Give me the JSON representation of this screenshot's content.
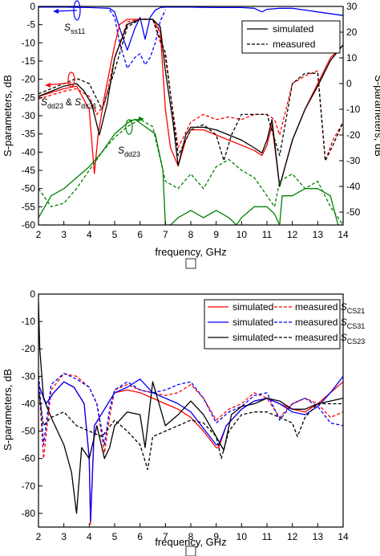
{
  "chart_data": [
    {
      "type": "line",
      "panel_label": "",
      "xlabel": "frequency, GHz",
      "ylabel": "S-parameters, dB",
      "y2label": "S-parameters, dB",
      "xlim": [
        2,
        14
      ],
      "ylim": [
        -60,
        0
      ],
      "y2lim": [
        -55,
        30
      ],
      "xticks": [
        "2",
        "3",
        "4",
        "5",
        "6",
        "7",
        "8",
        "9",
        "10",
        "11",
        "12",
        "13",
        "14"
      ],
      "yticks": [
        "0",
        "-5",
        "-10",
        "-15",
        "-20",
        "-25",
        "-30",
        "-35",
        "-40",
        "-45",
        "-50",
        "-55",
        "-60"
      ],
      "y2ticks": [
        "30",
        "20",
        "10",
        "0",
        "-10",
        "-20",
        "-30",
        "-40",
        "-50"
      ],
      "grid": false,
      "legend": {
        "position": "top-right",
        "entries": [
          "simulated",
          "measured"
        ]
      },
      "annotations": [
        {
          "name": "S",
          "sub": "ss11"
        },
        {
          "name": "S",
          "sub": "dd23"
        },
        {
          "name": "&"
        },
        {
          "name": "S",
          "sub": "ds31"
        },
        {
          "name": "S",
          "sub": "dd23"
        }
      ],
      "series": [
        {
          "color": "#0000ff",
          "style": "solid",
          "axis": "left",
          "x": [
            2,
            3,
            4,
            4.8,
            5,
            5.2,
            5.5,
            5.8,
            6,
            6.2,
            6.4,
            6.6,
            6.8,
            7,
            8,
            9,
            10,
            10.5,
            10.8,
            11,
            11.5,
            12,
            13,
            14
          ],
          "y": [
            -0.2,
            -0.2,
            -0.3,
            -0.5,
            -1.5,
            -6,
            -12,
            -6,
            -3,
            -9,
            -3,
            -1,
            -0.3,
            -0.2,
            -0.2,
            -0.3,
            -0.3,
            -0.5,
            -1.5,
            -0.8,
            -0.5,
            -0.5,
            -1.5,
            -2.5
          ]
        },
        {
          "color": "#0000ff",
          "style": "dashed",
          "axis": "left",
          "x": [
            4.8,
            5,
            5.2,
            5.5,
            5.8,
            6,
            6.2,
            6.4,
            6.6,
            6.8,
            7
          ],
          "y": [
            -1,
            -3,
            -10,
            -17,
            -14,
            -13,
            -16,
            -14,
            -10,
            -4,
            -1
          ]
        },
        {
          "color": "#ff0000",
          "style": "solid",
          "axis": "right",
          "x": [
            2,
            3,
            3.5,
            4,
            4.2,
            4.35,
            4.6,
            5,
            5.2,
            5.5,
            6,
            6.5,
            6.8,
            7,
            7.2,
            7.5,
            7.8,
            8,
            8.5,
            9,
            9.5,
            10,
            10.5,
            10.8,
            11,
            11.2,
            11.5,
            12,
            12.5,
            13,
            13.5,
            14
          ],
          "y": [
            -5,
            -2,
            -1,
            -10,
            -35,
            -20,
            -5,
            15,
            23,
            25,
            25,
            25,
            20,
            -10,
            -25,
            -32,
            -22,
            -18,
            -18,
            -20,
            -22,
            -24,
            -26,
            -28,
            -24,
            -16,
            -40,
            -22,
            -10,
            0,
            10,
            15
          ]
        },
        {
          "color": "#ff0000",
          "style": "dashed",
          "axis": "right",
          "x": [
            2,
            3,
            3.5,
            4,
            4.3,
            4.6,
            5,
            5.5,
            6,
            6.5,
            7,
            7.5,
            8,
            8.5,
            9,
            9.5,
            10,
            10.5,
            11,
            11.3,
            11.5,
            12,
            12.5,
            13,
            13.3,
            13.6,
            14
          ],
          "y": [
            -6,
            -3,
            -2,
            -5,
            -12,
            -8,
            10,
            24,
            25,
            25,
            10,
            -25,
            -15,
            -12,
            -14,
            -13,
            -14,
            -12,
            -12,
            -14,
            -20,
            0,
            3,
            5,
            -30,
            -22,
            -15
          ]
        },
        {
          "color": "#000000",
          "style": "solid",
          "axis": "right",
          "x": [
            2,
            3,
            3.5,
            3.8,
            4.1,
            4.4,
            4.7,
            5,
            5.5,
            6,
            6.5,
            6.8,
            7,
            7.3,
            7.5,
            7.8,
            8,
            8.5,
            9,
            9.5,
            10,
            10.5,
            10.8,
            11,
            11.2,
            11.5,
            12,
            12.5,
            13,
            13.5,
            14
          ],
          "y": [
            -5,
            -1,
            0,
            -3,
            -8,
            -20,
            -8,
            10,
            23,
            25,
            25,
            22,
            5,
            -15,
            -32,
            -20,
            -17,
            -17,
            -18,
            -20,
            -22,
            -25,
            -27,
            -22,
            -14,
            -40,
            -22,
            -10,
            -1,
            9,
            15
          ]
        },
        {
          "color": "#000000",
          "style": "dashed",
          "axis": "right",
          "x": [
            2,
            3,
            3.5,
            4,
            4.5,
            5,
            5.5,
            6,
            6.5,
            7,
            7.5,
            8,
            8.5,
            9,
            9.3,
            9.6,
            10,
            10.5,
            11,
            11.5,
            12,
            12.5,
            13,
            13.3,
            13.6,
            14
          ],
          "y": [
            -4,
            0,
            2,
            0,
            -10,
            5,
            22,
            25,
            25,
            12,
            -28,
            -18,
            -16,
            -20,
            -30,
            -20,
            -12,
            -12,
            -12,
            -28,
            0,
            4,
            4,
            -30,
            -24,
            -15
          ]
        },
        {
          "color": "#008000",
          "style": "solid",
          "axis": "left",
          "x": [
            2,
            2.5,
            3,
            3.5,
            4,
            4.5,
            5,
            5.5,
            5.8,
            6.2,
            6.6,
            6.9,
            7,
            7.2,
            7.5,
            8,
            8.5,
            9,
            9.5,
            9.8,
            10,
            10.5,
            11,
            11.3,
            11.5,
            11.6,
            12,
            12.5,
            13,
            13.5,
            13.8,
            14
          ],
          "y": [
            -58,
            -52,
            -50,
            -47,
            -44,
            -40,
            -35,
            -32,
            -31,
            -33,
            -35,
            -45,
            -60,
            -60,
            -58,
            -56,
            -58,
            -56,
            -58,
            -60,
            -58,
            -55,
            -55,
            -57,
            -60,
            -52,
            -52,
            -50,
            -50,
            -52,
            -60,
            -60
          ]
        },
        {
          "color": "#008000",
          "style": "dashed",
          "axis": "left",
          "x": [
            2,
            2.5,
            3,
            3.5,
            4,
            4.5,
            5,
            5.5,
            6,
            6.5,
            7,
            7.5,
            8,
            8.5,
            9,
            9.5,
            10,
            10.5,
            11,
            11.3,
            11.5,
            12,
            12.5,
            13,
            13.5,
            14
          ],
          "y": [
            -50,
            -55,
            -54,
            -50,
            -45,
            -40,
            -36,
            -33,
            -31,
            -33,
            -48,
            -50,
            -46,
            -50,
            -44,
            -42,
            -45,
            -47,
            -52,
            -55,
            -48,
            -46,
            -50,
            -48,
            -55,
            -60
          ]
        }
      ]
    },
    {
      "type": "line",
      "panel_label": "",
      "xlabel": "frequency, GHz",
      "ylabel": "S-parameters, dB",
      "xlim": [
        2,
        14
      ],
      "ylim": [
        -85,
        0
      ],
      "xticks": [
        "2",
        "3",
        "4",
        "5",
        "6",
        "7",
        "8",
        "9",
        "10",
        "11",
        "12",
        "13",
        "14"
      ],
      "yticks": [
        "0",
        "-10",
        "-20",
        "-30",
        "-40",
        "-50",
        "-60",
        "-70",
        "-80"
      ],
      "grid": false,
      "legend": {
        "position": "top-right",
        "rows": [
          {
            "simulated": "simulated",
            "measured": "measured ",
            "sub": "CS21"
          },
          {
            "simulated": "simulated",
            "measured": "measured ",
            "sub": "CS31"
          },
          {
            "simulated": "simulated",
            "measured": "measured ",
            "sub": "CS23"
          }
        ]
      },
      "series": [
        {
          "color": "#ff0000",
          "style": "solid",
          "x": [
            2,
            2.3,
            2.6,
            3,
            3.4,
            3.8,
            4,
            4.05,
            4.2,
            4.6,
            5,
            5.5,
            6,
            6.5,
            7,
            7.5,
            8,
            8.5,
            9,
            9.1,
            9.4,
            10,
            10.5,
            11,
            11.5,
            12,
            12.5,
            13,
            13.5,
            14
          ],
          "y": [
            -33,
            -40,
            -36,
            -32,
            -34,
            -40,
            -60,
            -84,
            -48,
            -42,
            -36,
            -35,
            -36,
            -38,
            -40,
            -42,
            -45,
            -50,
            -56,
            -56,
            -48,
            -42,
            -39,
            -38,
            -40,
            -42,
            -43,
            -40,
            -36,
            -32
          ]
        },
        {
          "color": "#ff0000",
          "style": "dashed",
          "x": [
            2,
            2.2,
            2.5,
            3,
            3.5,
            4,
            4.3,
            4.6,
            4.8,
            5,
            5.5,
            6,
            6.5,
            7,
            7.5,
            8,
            8.5,
            9,
            9.5,
            10,
            10.5,
            11,
            11.5,
            12,
            12.5,
            13,
            13.5,
            14
          ],
          "y": [
            -30,
            -60,
            -35,
            -29,
            -30,
            -34,
            -40,
            -58,
            -45,
            -35,
            -33,
            -35,
            -36,
            -37,
            -36,
            -33,
            -38,
            -46,
            -42,
            -40,
            -36,
            -38,
            -45,
            -40,
            -38,
            -40,
            -45,
            -43
          ]
        },
        {
          "color": "#0000ff",
          "style": "solid",
          "x": [
            2,
            2.3,
            2.6,
            3,
            3.4,
            3.8,
            4,
            4.05,
            4.2,
            4.6,
            5,
            5.5,
            6,
            6.5,
            7,
            7.5,
            8,
            8.5,
            9,
            9.1,
            9.4,
            10,
            10.5,
            11,
            11.5,
            12,
            12.5,
            13,
            13.5,
            14
          ],
          "y": [
            -33,
            -40,
            -36,
            -32,
            -34,
            -40,
            -60,
            -83,
            -48,
            -42,
            -36,
            -34,
            -31,
            -36,
            -38,
            -40,
            -43,
            -49,
            -55,
            -55,
            -48,
            -42,
            -39,
            -38,
            -40,
            -43,
            -44,
            -41,
            -36,
            -30
          ]
        },
        {
          "color": "#0000ff",
          "style": "dashed",
          "x": [
            2,
            2.2,
            2.5,
            3,
            3.5,
            4,
            4.3,
            4.6,
            4.8,
            5,
            5.5,
            6,
            6.5,
            7,
            7.5,
            8,
            8.5,
            9,
            9.5,
            10,
            10.5,
            11,
            11.5,
            12,
            12.5,
            13,
            13.5,
            14
          ],
          "y": [
            -28,
            -55,
            -33,
            -29,
            -31,
            -34,
            -40,
            -55,
            -42,
            -35,
            -32,
            -35,
            -36,
            -35,
            -33,
            -32,
            -38,
            -47,
            -43,
            -41,
            -37,
            -36,
            -46,
            -40,
            -38,
            -41,
            -47,
            -48
          ]
        },
        {
          "color": "#000000",
          "style": "solid",
          "x": [
            2,
            2.05,
            2.2,
            2.5,
            3,
            3.3,
            3.5,
            3.7,
            4,
            4.3,
            4.6,
            4.8,
            5,
            5.5,
            6,
            6.2,
            6.5,
            7,
            7.5,
            8,
            8.5,
            9,
            9.3,
            9.6,
            10,
            10.5,
            11,
            11.5,
            12,
            12.5,
            13,
            13.5,
            14
          ],
          "y": [
            -3,
            -20,
            -38,
            -45,
            -55,
            -65,
            -80,
            -56,
            -60,
            -48,
            -60,
            -56,
            -48,
            -43,
            -44,
            -56,
            -32,
            -48,
            -44,
            -39,
            -44,
            -52,
            -57,
            -44,
            -41,
            -40,
            -38,
            -39,
            -42,
            -42,
            -40,
            -39,
            -38
          ]
        },
        {
          "color": "#000000",
          "style": "dashed",
          "x": [
            2,
            2.2,
            2.5,
            3,
            3.5,
            4,
            4.5,
            5,
            5.5,
            5.8,
            6,
            6.3,
            6.5,
            7,
            7.5,
            8,
            8.5,
            9,
            9.2,
            9.5,
            10,
            10.5,
            11,
            11.5,
            12,
            12.2,
            12.5,
            13,
            13.5,
            14
          ],
          "y": [
            -35,
            -48,
            -45,
            -43,
            -48,
            -50,
            -52,
            -46,
            -50,
            -53,
            -55,
            -64,
            -52,
            -50,
            -48,
            -46,
            -47,
            -52,
            -60,
            -50,
            -44,
            -43,
            -43,
            -45,
            -47,
            -52,
            -45,
            -40,
            -40,
            -40
          ]
        }
      ]
    }
  ]
}
